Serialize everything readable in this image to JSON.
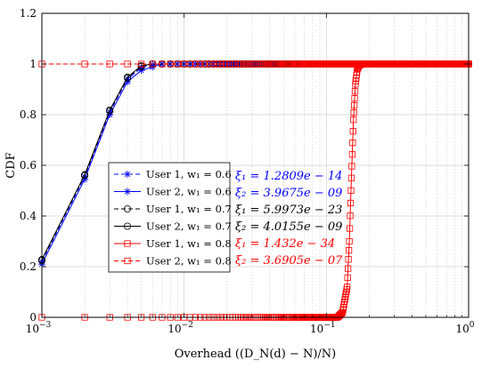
{
  "chart_data": {
    "type": "line",
    "title": "",
    "xlabel": "Overhead ((D_N(d) − N)/N)",
    "ylabel": "CDF",
    "x_scale": "log",
    "xlim": [
      0.001,
      1
    ],
    "ylim": [
      0,
      1.2
    ],
    "grid": true,
    "x_ticks": [
      {
        "value": 0.001,
        "base": "10",
        "exp": "−3"
      },
      {
        "value": 0.01,
        "base": "10",
        "exp": "−2"
      },
      {
        "value": 0.1,
        "base": "10",
        "exp": "−1"
      },
      {
        "value": 1,
        "base": "10",
        "exp": "0"
      }
    ],
    "y_ticks": [
      {
        "value": 0,
        "label": "0"
      },
      {
        "value": 0.2,
        "label": "0.2"
      },
      {
        "value": 0.4,
        "label": "0.4"
      },
      {
        "value": 0.6,
        "label": "0.6"
      },
      {
        "value": 0.8,
        "label": "0.8"
      },
      {
        "value": 1,
        "label": "1"
      },
      {
        "value": 1.2,
        "label": "1.2"
      }
    ],
    "legend_position": "center-left",
    "series": [
      {
        "name": "User 1, w₁ = 0.6",
        "color": "#0000ff",
        "dash": "dashed",
        "marker": "asterisk",
        "profile": "fast",
        "offset": 0.0
      },
      {
        "name": "User 2, w₁ = 0.6",
        "color": "#0000ff",
        "dash": "solid",
        "marker": "asterisk",
        "profile": "fast",
        "offset": -0.01
      },
      {
        "name": "User 1, w₁ = 0.7",
        "color": "#000000",
        "dash": "dashed",
        "marker": "circle",
        "profile": "fast",
        "offset": 0.005
      },
      {
        "name": "User 2, w₁ = 0.7",
        "color": "#000000",
        "dash": "solid",
        "marker": "circle",
        "profile": "fast",
        "offset": 0.008
      },
      {
        "name": "User 1, w₁ = 0.8",
        "color": "#ff0000",
        "dash": "solid",
        "marker": "square",
        "profile": "slow",
        "offset": 0.0
      },
      {
        "name": "User 2, w₁ = 0.8",
        "color": "#ff0000",
        "dash": "dashed",
        "marker": "square",
        "profile": "flat",
        "offset": 0.0
      }
    ],
    "profiles": {
      "fast": {
        "x": [
          0.001,
          0.002,
          0.003,
          0.004,
          0.005,
          0.006,
          0.007,
          0.008,
          0.01,
          0.02,
          0.05,
          0.1,
          0.2,
          0.5,
          1
        ],
        "y": [
          0.22,
          0.555,
          0.81,
          0.94,
          0.985,
          0.998,
          1,
          1,
          1,
          1,
          1,
          1,
          1,
          1,
          1
        ]
      },
      "slow": {
        "x": [
          0.001,
          0.01,
          0.1,
          0.12,
          0.13,
          0.14,
          0.145,
          0.15,
          0.155,
          0.16,
          0.165,
          0.17,
          0.18,
          0.2,
          0.5,
          1
        ],
        "y": [
          0,
          0,
          0,
          0.0,
          0.02,
          0.12,
          0.3,
          0.55,
          0.78,
          0.92,
          0.98,
          0.995,
          1,
          1,
          1,
          1
        ]
      },
      "flat": {
        "x": [
          0.001,
          0.01,
          0.1,
          1
        ],
        "y": [
          1,
          1,
          1,
          1
        ]
      }
    },
    "annotations": [
      {
        "color": "#0000ff",
        "lines": [
          "ξ₁ = 1.2809e − 14",
          "ξ₂ = 3.9675e − 09"
        ]
      },
      {
        "color": "#000000",
        "lines": [
          "ξ₁ = 5.9973e − 23",
          "ξ₂ = 4.0155e − 09"
        ]
      },
      {
        "color": "#ff0000",
        "lines": [
          "ξ₁ = 1.432e − 34",
          "ξ₂ = 3.6905e − 07"
        ]
      }
    ]
  }
}
